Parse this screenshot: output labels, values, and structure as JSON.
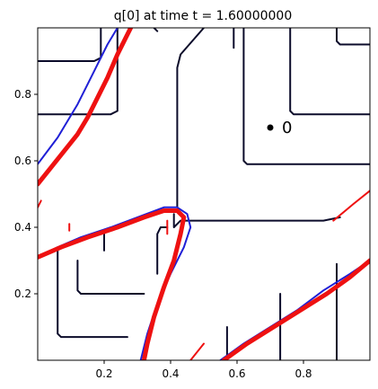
{
  "chart_data": {
    "type": "line",
    "title": "q[0] at time t =     1.60000000",
    "xlabel": "",
    "ylabel": "",
    "xlim": [
      0.0,
      1.0
    ],
    "ylim": [
      0.0,
      1.0
    ],
    "xticks": [
      {
        "value": 0.2,
        "label": "0.2"
      },
      {
        "value": 0.4,
        "label": "0.4"
      },
      {
        "value": 0.6,
        "label": "0.6"
      },
      {
        "value": 0.8,
        "label": "0.8"
      }
    ],
    "yticks": [
      {
        "value": 0.2,
        "label": "0.2"
      },
      {
        "value": 0.4,
        "label": "0.4"
      },
      {
        "value": 0.6,
        "label": "0.6"
      },
      {
        "value": 0.8,
        "label": "0.8"
      }
    ],
    "grid": false,
    "colors": {
      "contour_dark": "#0b0b2a",
      "contour_blue": "#1f1fd6",
      "contour_red": "#ee1111",
      "marker": "#000000"
    },
    "marker": {
      "x": 0.7,
      "y": 0.7,
      "label": "0"
    },
    "series": [
      {
        "color": "dark",
        "width": 2.0,
        "points": [
          [
            0.0,
            0.9
          ],
          [
            0.17,
            0.9
          ],
          [
            0.19,
            0.91
          ],
          [
            0.19,
            1.0
          ]
        ]
      },
      {
        "color": "dark",
        "width": 2.0,
        "points": [
          [
            0.0,
            0.74
          ],
          [
            0.22,
            0.74
          ],
          [
            0.24,
            0.75
          ],
          [
            0.24,
            1.0
          ]
        ]
      },
      {
        "color": "dark",
        "width": 2.0,
        "points": [
          [
            0.35,
            1.0
          ],
          [
            0.36,
            0.99
          ]
        ]
      },
      {
        "color": "dark",
        "width": 2.0,
        "points": [
          [
            0.5,
            1.0
          ],
          [
            0.43,
            0.92
          ],
          [
            0.42,
            0.88
          ],
          [
            0.42,
            0.46
          ]
        ]
      },
      {
        "color": "dark",
        "width": 2.0,
        "points": [
          [
            0.59,
            1.0
          ],
          [
            0.59,
            0.94
          ]
        ]
      },
      {
        "color": "dark",
        "width": 2.0,
        "points": [
          [
            0.9,
            1.0
          ],
          [
            0.9,
            0.96
          ],
          [
            0.91,
            0.95
          ],
          [
            1.0,
            0.95
          ]
        ]
      },
      {
        "color": "dark",
        "width": 2.0,
        "points": [
          [
            0.76,
            1.0
          ],
          [
            0.76,
            0.75
          ],
          [
            0.77,
            0.74
          ],
          [
            1.0,
            0.74
          ]
        ]
      },
      {
        "color": "dark",
        "width": 2.0,
        "points": [
          [
            0.62,
            1.0
          ],
          [
            0.62,
            0.6
          ],
          [
            0.63,
            0.59
          ],
          [
            1.0,
            0.59
          ]
        ]
      },
      {
        "color": "dark",
        "width": 2.0,
        "points": [
          [
            0.41,
            0.44
          ],
          [
            0.41,
            0.4
          ],
          [
            0.43,
            0.42
          ],
          [
            0.86,
            0.42
          ],
          [
            0.91,
            0.43
          ]
        ]
      },
      {
        "color": "dark",
        "width": 2.0,
        "points": [
          [
            0.06,
            0.34
          ],
          [
            0.06,
            0.08
          ],
          [
            0.07,
            0.07
          ],
          [
            0.27,
            0.07
          ]
        ]
      },
      {
        "color": "dark",
        "width": 2.0,
        "points": [
          [
            0.12,
            0.3
          ],
          [
            0.12,
            0.21
          ],
          [
            0.13,
            0.2
          ],
          [
            0.32,
            0.2
          ]
        ]
      },
      {
        "color": "dark",
        "width": 2.0,
        "points": [
          [
            0.2,
            0.38
          ],
          [
            0.2,
            0.33
          ]
        ]
      },
      {
        "color": "dark",
        "width": 2.0,
        "points": [
          [
            0.39,
            0.4
          ],
          [
            0.37,
            0.4
          ],
          [
            0.36,
            0.38
          ],
          [
            0.36,
            0.26
          ]
        ]
      },
      {
        "color": "dark",
        "width": 2.0,
        "points": [
          [
            0.57,
            0.0
          ],
          [
            0.57,
            0.1
          ]
        ]
      },
      {
        "color": "dark",
        "width": 2.0,
        "points": [
          [
            0.73,
            0.0
          ],
          [
            0.73,
            0.2
          ]
        ]
      },
      {
        "color": "dark",
        "width": 2.0,
        "points": [
          [
            0.9,
            0.0
          ],
          [
            0.9,
            0.29
          ]
        ]
      },
      {
        "color": "blue",
        "width": 2.0,
        "points": [
          [
            0.0,
            0.59
          ],
          [
            0.03,
            0.63
          ],
          [
            0.06,
            0.67
          ],
          [
            0.09,
            0.72
          ],
          [
            0.12,
            0.77
          ],
          [
            0.15,
            0.83
          ],
          [
            0.18,
            0.89
          ],
          [
            0.21,
            0.95
          ],
          [
            0.24,
            1.0
          ]
        ]
      },
      {
        "color": "blue",
        "width": 2.0,
        "points": [
          [
            0.0,
            0.31
          ],
          [
            0.06,
            0.34
          ],
          [
            0.13,
            0.37
          ],
          [
            0.22,
            0.4
          ],
          [
            0.3,
            0.43
          ],
          [
            0.38,
            0.46
          ],
          [
            0.42,
            0.46
          ],
          [
            0.45,
            0.44
          ],
          [
            0.46,
            0.4
          ],
          [
            0.44,
            0.34
          ],
          [
            0.4,
            0.26
          ],
          [
            0.36,
            0.17
          ],
          [
            0.33,
            0.08
          ],
          [
            0.31,
            0.0
          ]
        ]
      },
      {
        "color": "blue",
        "width": 2.0,
        "points": [
          [
            0.55,
            0.0
          ],
          [
            0.62,
            0.05
          ],
          [
            0.7,
            0.1
          ],
          [
            0.78,
            0.15
          ],
          [
            0.86,
            0.21
          ],
          [
            0.94,
            0.26
          ],
          [
            1.0,
            0.3
          ]
        ]
      },
      {
        "color": "red",
        "width": 5.0,
        "points": [
          [
            0.0,
            0.53
          ],
          [
            0.04,
            0.58
          ],
          [
            0.08,
            0.63
          ],
          [
            0.12,
            0.68
          ],
          [
            0.15,
            0.73
          ],
          [
            0.18,
            0.79
          ],
          [
            0.21,
            0.85
          ],
          [
            0.24,
            0.92
          ],
          [
            0.27,
            0.98
          ],
          [
            0.28,
            1.0
          ]
        ]
      },
      {
        "color": "red",
        "width": 5.0,
        "points": [
          [
            0.0,
            0.31
          ],
          [
            0.07,
            0.34
          ],
          [
            0.15,
            0.37
          ],
          [
            0.24,
            0.4
          ],
          [
            0.32,
            0.43
          ],
          [
            0.38,
            0.45
          ],
          [
            0.42,
            0.45
          ],
          [
            0.44,
            0.43
          ],
          [
            0.43,
            0.38
          ],
          [
            0.41,
            0.3
          ],
          [
            0.38,
            0.22
          ],
          [
            0.35,
            0.13
          ],
          [
            0.33,
            0.05
          ],
          [
            0.32,
            0.0
          ]
        ]
      },
      {
        "color": "red",
        "width": 5.0,
        "points": [
          [
            0.56,
            0.0
          ],
          [
            0.63,
            0.05
          ],
          [
            0.71,
            0.1
          ],
          [
            0.79,
            0.15
          ],
          [
            0.87,
            0.2
          ],
          [
            0.94,
            0.25
          ],
          [
            1.0,
            0.3
          ]
        ]
      },
      {
        "color": "red",
        "width": 2.0,
        "points": [
          [
            0.46,
            0.0
          ],
          [
            0.5,
            0.05
          ]
        ]
      },
      {
        "color": "red",
        "width": 2.0,
        "points": [
          [
            0.89,
            0.42
          ],
          [
            0.95,
            0.47
          ],
          [
            1.0,
            0.51
          ]
        ]
      },
      {
        "color": "red",
        "width": 2.0,
        "points": [
          [
            0.0,
            0.46
          ],
          [
            0.01,
            0.48
          ]
        ]
      },
      {
        "color": "red",
        "width": 2.0,
        "points": [
          [
            0.095,
            0.41
          ],
          [
            0.095,
            0.39
          ]
        ]
      },
      {
        "color": "red",
        "width": 2.0,
        "points": [
          [
            0.39,
            0.42
          ],
          [
            0.39,
            0.38
          ]
        ]
      }
    ]
  }
}
